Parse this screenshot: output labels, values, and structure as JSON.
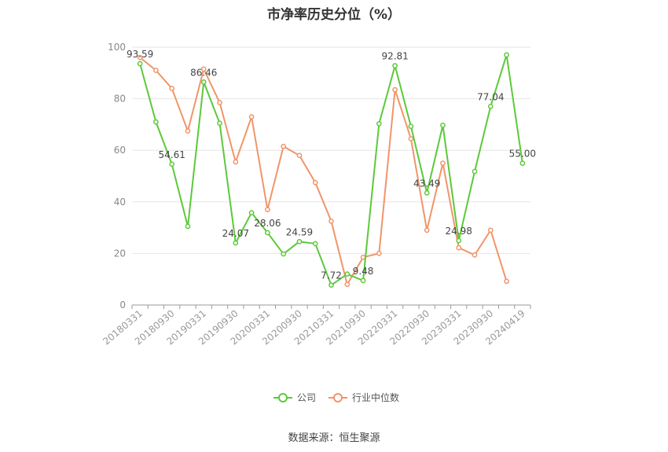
{
  "chart_data": {
    "type": "line",
    "title": "市净率历史分位（%）",
    "source": "数据来源：恒生聚源",
    "ylim": [
      0,
      100
    ],
    "yticks": [
      0,
      20,
      40,
      60,
      80,
      100
    ],
    "xtick_labels": [
      "20180331",
      "20180930",
      "20190331",
      "20190930",
      "20200331",
      "20200930",
      "20210331",
      "20210930",
      "20220331",
      "20220930",
      "20230331",
      "20230930",
      "20240419"
    ],
    "grid": true,
    "legend_position": "bottom",
    "series": [
      {
        "name": "公司",
        "color": "#5cc93a",
        "values": [
          93.59,
          71,
          54.61,
          30.5,
          86.46,
          70.5,
          24.07,
          35.8,
          28.06,
          19.8,
          24.59,
          23.8,
          7.72,
          12,
          9.48,
          70.3,
          92.81,
          69.3,
          43.49,
          69.7,
          24.98,
          51.8,
          77.04,
          97,
          55.0
        ],
        "labels": {
          "0": "93.59",
          "2": "54.61",
          "4": "86.46",
          "6": "24.07",
          "8": "28.06",
          "10": "24.59",
          "12": "7.72",
          "14": "9.48",
          "16": "92.81",
          "18": "43.49",
          "20": "24.98",
          "22": "77.04",
          "24": "55.00"
        }
      },
      {
        "name": "行业中位数",
        "color": "#f0956a",
        "values": [
          96,
          91,
          84,
          67.5,
          91.5,
          78.5,
          55.5,
          73,
          37,
          61.5,
          58,
          47.5,
          32.5,
          8,
          18.5,
          20,
          83.5,
          64.5,
          29,
          55,
          22.2,
          19.4,
          29,
          9.2,
          null
        ]
      }
    ]
  }
}
